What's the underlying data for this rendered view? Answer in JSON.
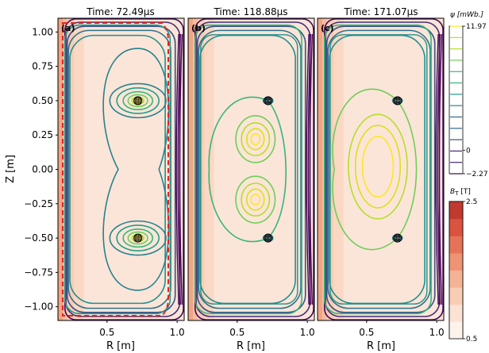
{
  "chart_data": {
    "type": "contour",
    "panels": [
      {
        "id": "a",
        "label": "(a)",
        "title": "Time: 72.49μs",
        "mode": "early"
      },
      {
        "id": "b",
        "label": "(b)",
        "title": "Time: 118.88μs",
        "mode": "mid"
      },
      {
        "id": "c",
        "label": "(c)",
        "title": "Time: 171.07μs",
        "mode": "late"
      }
    ],
    "xlabel": "R [m]",
    "ylabel": "Z [m]",
    "xlim": [
      0.15,
      1.05
    ],
    "ylim": [
      -1.1,
      1.1
    ],
    "xticks": [
      {
        "v": 0.5,
        "label": "0.5"
      },
      {
        "v": 1.0,
        "label": "1.0"
      }
    ],
    "yticks": [
      {
        "v": 1.0,
        "label": "1.00"
      },
      {
        "v": 0.75,
        "label": "0.75"
      },
      {
        "v": 0.5,
        "label": "0.50"
      },
      {
        "v": 0.25,
        "label": "0.25"
      },
      {
        "v": 0.0,
        "label": "0.00"
      },
      {
        "v": -0.25,
        "label": "−0.25"
      },
      {
        "v": -0.5,
        "label": "−0.50"
      },
      {
        "v": -0.75,
        "label": "−0.75"
      },
      {
        "v": -1.0,
        "label": "−1.00"
      }
    ],
    "coils": [
      {
        "r": 0.72,
        "z": 0.5
      },
      {
        "r": 0.72,
        "z": -0.5
      }
    ],
    "psi_colorbar": {
      "label": "ψ [mWb.]",
      "max": 11.97,
      "min": -2.27,
      "ticks": [
        {
          "v": 11.97,
          "label": "11.97"
        },
        {
          "v": 0,
          "label": "0"
        },
        {
          "v": -2.27,
          "label": "−2.27"
        }
      ],
      "colormap": "viridis"
    },
    "bt_colorbar": {
      "label": "B_T [T]",
      "label_main": "B",
      "label_sub": "T",
      "label_unit": " [T]",
      "max": 2.5,
      "min": 0.5,
      "ticks": [
        {
          "v": 2.5,
          "label": "2.5"
        },
        {
          "v": 0.5,
          "label": "0.5"
        }
      ],
      "colormap": "reds"
    },
    "boundary": {
      "color": "#e8201e",
      "style": "dashed",
      "panel": "a"
    }
  }
}
